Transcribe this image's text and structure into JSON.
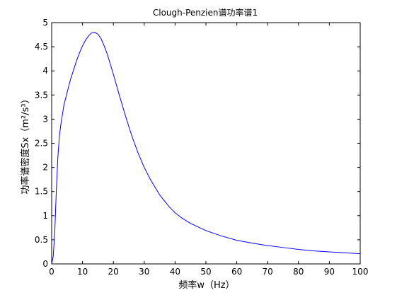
{
  "chart_data": {
    "type": "line",
    "title": "Clough-Penzien谱功率谱1",
    "xlabel": "频率w（Hz）",
    "ylabel": "功率谱密度Sx（m²/s³）",
    "xlim": [
      0,
      100
    ],
    "ylim": [
      0,
      5
    ],
    "xticks": [
      0,
      10,
      20,
      30,
      40,
      50,
      60,
      70,
      80,
      90,
      100
    ],
    "xtick_labels": [
      "0",
      "10",
      "20",
      "30",
      "40",
      "50",
      "60",
      "70",
      "80",
      "90",
      "100"
    ],
    "yticks": [
      0,
      0.5,
      1,
      1.5,
      2,
      2.5,
      3,
      3.5,
      4,
      4.5,
      5
    ],
    "ytick_labels": [
      "0",
      "0.5",
      "1",
      "1.5",
      "2",
      "2.5",
      "3",
      "3.5",
      "4",
      "4.5",
      "5"
    ],
    "grid": false,
    "line_color": "#0000ff",
    "series": [
      {
        "x": [
          0,
          0.5,
          1,
          1.5,
          2,
          2.5,
          3,
          3.5,
          4,
          5,
          6,
          7,
          8,
          9,
          10,
          11,
          12,
          13,
          14,
          15,
          16,
          17,
          18,
          19,
          20,
          22,
          24,
          26,
          28,
          30,
          32,
          35,
          38,
          40,
          42,
          45,
          48,
          50,
          55,
          60,
          65,
          70,
          75,
          80,
          85,
          90,
          95,
          100
        ],
        "values": [
          0,
          0.15,
          0.65,
          1.5,
          2.2,
          2.65,
          2.9,
          3.1,
          3.3,
          3.55,
          3.8,
          4.0,
          4.2,
          4.37,
          4.52,
          4.64,
          4.73,
          4.79,
          4.8,
          4.76,
          4.67,
          4.52,
          4.35,
          4.14,
          3.93,
          3.48,
          3.05,
          2.65,
          2.3,
          2.0,
          1.75,
          1.43,
          1.19,
          1.06,
          0.96,
          0.84,
          0.75,
          0.69,
          0.58,
          0.49,
          0.43,
          0.38,
          0.34,
          0.3,
          0.27,
          0.25,
          0.23,
          0.21
        ]
      }
    ]
  }
}
